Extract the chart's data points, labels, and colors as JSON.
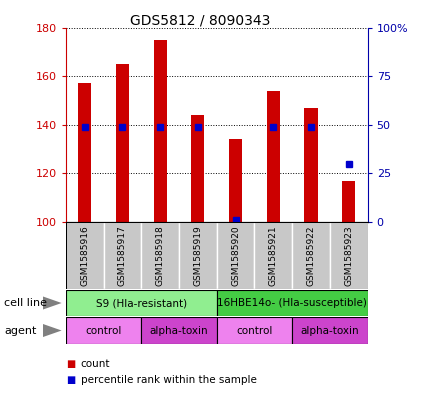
{
  "title": "GDS5812 / 8090343",
  "samples": [
    "GSM1585916",
    "GSM1585917",
    "GSM1585918",
    "GSM1585919",
    "GSM1585920",
    "GSM1585921",
    "GSM1585922",
    "GSM1585923"
  ],
  "count_values": [
    157,
    165,
    175,
    144,
    134,
    154,
    147,
    117
  ],
  "percentile_values": [
    49,
    49,
    49,
    49,
    1,
    49,
    49,
    30
  ],
  "ylim_left": [
    100,
    180
  ],
  "ylim_right": [
    0,
    100
  ],
  "yticks_left": [
    100,
    120,
    140,
    160,
    180
  ],
  "yticks_right": [
    0,
    25,
    50,
    75,
    100
  ],
  "yticklabels_right": [
    "0",
    "25",
    "50",
    "75",
    "100%"
  ],
  "bar_color": "#cc0000",
  "dot_color": "#0000cc",
  "bar_width": 0.35,
  "cell_line_groups": [
    {
      "label": "S9 (Hla-resistant)",
      "start": 0,
      "end": 3,
      "color": "#90ee90"
    },
    {
      "label": "16HBE14o- (Hla-susceptible)",
      "start": 4,
      "end": 7,
      "color": "#44cc44"
    }
  ],
  "agent_colors": [
    "#ee82ee",
    "#cc44cc",
    "#ee82ee",
    "#cc44cc"
  ],
  "agent_labels": [
    "control",
    "alpha-toxin",
    "control",
    "alpha-toxin"
  ],
  "cell_line_label": "cell line",
  "agent_label": "agent",
  "background_color": "#ffffff",
  "plot_bg_color": "#ffffff",
  "sample_box_color": "#c8c8c8",
  "left_axis_color": "#cc0000",
  "right_axis_color": "#0000aa"
}
